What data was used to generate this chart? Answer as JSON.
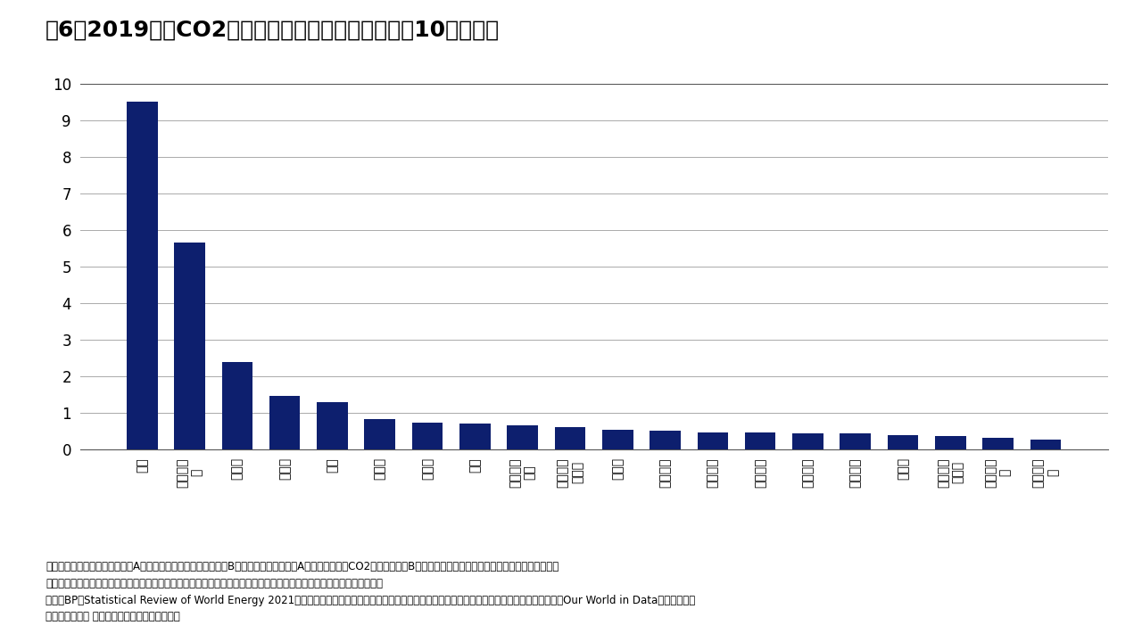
{
  "title": "図6：2019年のCO2排出量　（消費ベース、単位：10億トン）",
  "categories": [
    "中国",
    "アメリカ\nカ",
    "インド",
    "ロシア",
    "日本",
    "ドイツ",
    "イラン",
    "韓国",
    "インドネ\nシア",
    "サウジア\nラビア",
    "カナダ",
    "イギリス",
    "ブラジル",
    "メキシコ",
    "イタリア",
    "フランス",
    "トルコ",
    "オースト\nラリア",
    "南アフリ\nカ",
    "ポーラン\nド"
  ],
  "categories_raw": [
    "中国",
    "アメリカ",
    "インド",
    "ロシア",
    "日本",
    "ドイツ",
    "イラン",
    "韓国",
    "インドネシア",
    "サウジアラビア",
    "カナダ",
    "イギリス",
    "ブラジル",
    "メキシコ",
    "イタリア",
    "フランス",
    "トルコ",
    "オーストラリア",
    "南アフリカ",
    "ポーランド"
  ],
  "values": [
    9.5,
    5.65,
    2.4,
    1.45,
    1.3,
    0.82,
    0.72,
    0.7,
    0.65,
    0.6,
    0.53,
    0.5,
    0.47,
    0.46,
    0.43,
    0.43,
    0.4,
    0.37,
    0.32,
    0.27
  ],
  "bar_color": "#0d1f6e",
  "ylim": [
    0,
    10
  ],
  "yticks": [
    0,
    1,
    2,
    3,
    4,
    5,
    6,
    7,
    8,
    9,
    10
  ],
  "background_color": "#ffffff",
  "grid_color": "#aaaaaa",
  "footnote1": "備考：消費ベースとは、例えばA国が生産した商品が輸出されてB国で消費された場合、A国の排出量からCO2を差し引き、B国の排出量に加算します（グローバル・カーボン・",
  "footnote2": "プロジェクトが調整・算出）。この計算により、ライフスタイルによる排出量への影響をより反映した数値となります。",
  "footnote3": "出所：BP「Statistical Review of World Energy 2021」、グローバル・カーボン・プロジェクト、国際通貨基金、オックスフォード・エコノミクス、Our World in Data、世界銀行、",
  "footnote4": "リフィニティブ データストリーム、インベスコ"
}
